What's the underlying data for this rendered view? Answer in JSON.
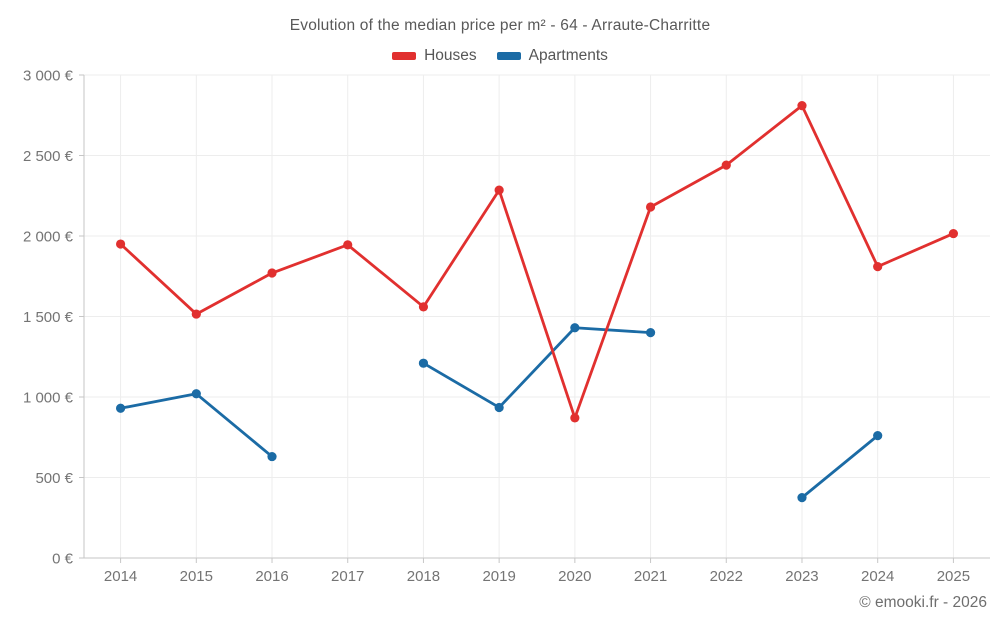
{
  "title": "Evolution of the median price per m² - 64 - Arraute-Charritte",
  "copyright": "© emooki.fr - 2026",
  "legend": {
    "items": [
      {
        "label": "Houses",
        "color": "#e1302f"
      },
      {
        "label": "Apartments",
        "color": "#1b6ba5"
      }
    ]
  },
  "colors": {
    "houses": "#e1302f",
    "apartments": "#1b6ba5",
    "grid": "#ededed",
    "axis": "#c6c6c6",
    "tick_text": "#747474",
    "title_text": "#595959"
  },
  "chart_data": {
    "type": "line",
    "title": "Evolution of the median price per m² - 64 - Arraute-Charritte",
    "x": [
      2014,
      2015,
      2016,
      2017,
      2018,
      2019,
      2020,
      2021,
      2022,
      2023,
      2024,
      2025
    ],
    "series": [
      {
        "name": "Houses",
        "color": "#e1302f",
        "values": [
          1950,
          1515,
          1770,
          1945,
          1560,
          2285,
          870,
          2180,
          2440,
          2810,
          1810,
          2015
        ]
      },
      {
        "name": "Apartments",
        "color": "#1b6ba5",
        "values": [
          930,
          1020,
          630,
          null,
          1210,
          935,
          1430,
          1400,
          null,
          375,
          760,
          null
        ]
      }
    ],
    "xlabel": "",
    "ylabel": "",
    "ylim": [
      0,
      3000
    ],
    "ytick_step": 500,
    "ytick_labels": [
      "0 €",
      "500 €",
      "1 000 €",
      "1 500 €",
      "2 000 €",
      "2 500 €",
      "3 000 €"
    ],
    "grid": true,
    "legend_position": "top",
    "marker": "circle",
    "currency": "€"
  }
}
